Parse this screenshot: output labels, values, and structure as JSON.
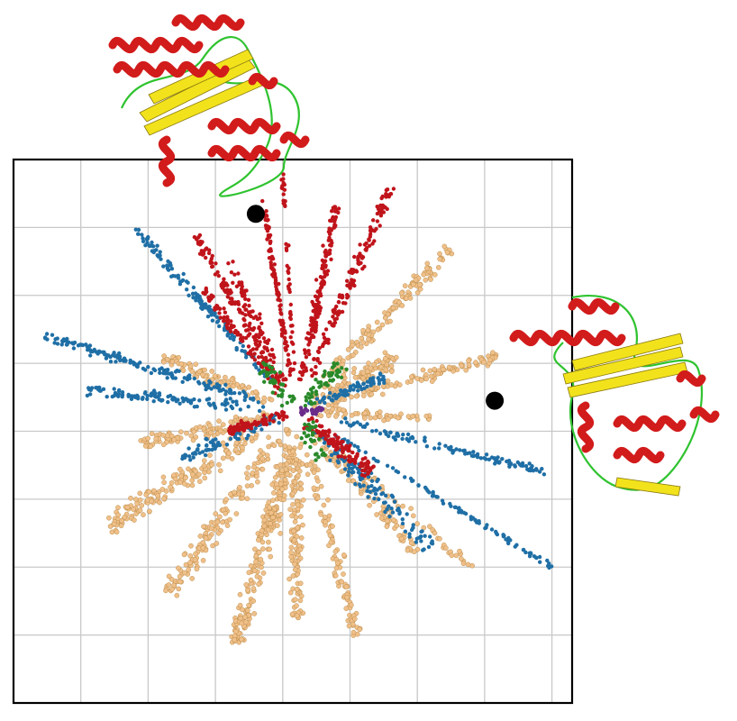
{
  "chart_data": {
    "type": "scatter",
    "title": "",
    "xlabel": "",
    "ylabel": "",
    "grid": true,
    "legend": "none",
    "xlim": [
      0,
      8.3
    ],
    "ylim": [
      0,
      8.0
    ],
    "description_of_layout": "",
    "series": [
      {
        "color": "#c0141b",
        "rays": [
          {
            "from": [
              4.2,
              4.3
            ],
            "to": [
              2.7,
              6.9
            ],
            "n": 120,
            "spread": 0.1
          },
          {
            "from": [
              4.2,
              4.3
            ],
            "to": [
              3.7,
              7.4
            ],
            "n": 110,
            "spread": 0.05
          },
          {
            "from": [
              4.2,
              4.3
            ],
            "to": [
              4.8,
              7.3
            ],
            "n": 160,
            "spread": 0.1
          },
          {
            "from": [
              4.2,
              4.3
            ],
            "to": [
              5.6,
              7.6
            ],
            "n": 150,
            "spread": 0.12
          },
          {
            "from": [
              4.2,
              4.3
            ],
            "to": [
              3.2,
              6.5
            ],
            "n": 80,
            "spread": 0.12
          },
          {
            "from": [
              4.2,
              4.3
            ],
            "to": [
              2.8,
              6.1
            ],
            "n": 80,
            "spread": 0.1
          },
          {
            "from": [
              4.2,
              4.3
            ],
            "to": [
              5.3,
              3.4
            ],
            "n": 120,
            "spread": 0.15
          },
          {
            "from": [
              4.2,
              4.3
            ],
            "to": [
              3.2,
              4.0
            ],
            "n": 90,
            "spread": 0.1
          },
          {
            "from": [
              4.2,
              4.3
            ],
            "to": [
              4.0,
              7.8
            ],
            "n": 45,
            "spread": 0.03
          }
        ]
      },
      {
        "color": "#1f6fa6",
        "rays": [
          {
            "from": [
              4.2,
              4.3
            ],
            "to": [
              0.45,
              5.4
            ],
            "n": 150,
            "spread": 0.1
          },
          {
            "from": [
              4.2,
              4.3
            ],
            "to": [
              1.8,
              7.0
            ],
            "n": 130,
            "spread": 0.1
          },
          {
            "from": [
              4.2,
              4.3
            ],
            "to": [
              1.1,
              4.6
            ],
            "n": 110,
            "spread": 0.12
          },
          {
            "from": [
              4.2,
              4.3
            ],
            "to": [
              7.9,
              3.4
            ],
            "n": 110,
            "spread": 0.08
          },
          {
            "from": [
              4.2,
              4.3
            ],
            "to": [
              8.0,
              2.0
            ],
            "n": 90,
            "spread": 0.06
          },
          {
            "from": [
              4.2,
              4.3
            ],
            "to": [
              6.2,
              2.3
            ],
            "n": 120,
            "spread": 0.2
          },
          {
            "from": [
              4.2,
              4.3
            ],
            "to": [
              5.5,
              4.8
            ],
            "n": 70,
            "spread": 0.12
          },
          {
            "from": [
              4.2,
              4.3
            ],
            "to": [
              2.5,
              3.6
            ],
            "n": 70,
            "spread": 0.15
          }
        ]
      },
      {
        "color": "#f0c08a",
        "rays": [
          {
            "from": [
              4.2,
              4.3
            ],
            "to": [
              6.5,
              6.7
            ],
            "n": 130,
            "spread": 0.15
          },
          {
            "from": [
              4.2,
              4.3
            ],
            "to": [
              7.2,
              5.1
            ],
            "n": 110,
            "spread": 0.12
          },
          {
            "from": [
              4.2,
              4.3
            ],
            "to": [
              1.4,
              2.6
            ],
            "n": 160,
            "spread": 0.22
          },
          {
            "from": [
              4.2,
              4.3
            ],
            "to": [
              2.3,
              1.6
            ],
            "n": 140,
            "spread": 0.2
          },
          {
            "from": [
              4.2,
              4.3
            ],
            "to": [
              3.3,
              0.85
            ],
            "n": 160,
            "spread": 0.2
          },
          {
            "from": [
              4.2,
              4.3
            ],
            "to": [
              4.2,
              1.2
            ],
            "n": 130,
            "spread": 0.15
          },
          {
            "from": [
              4.2,
              4.3
            ],
            "to": [
              5.1,
              1.0
            ],
            "n": 100,
            "spread": 0.15
          },
          {
            "from": [
              4.2,
              4.3
            ],
            "to": [
              6.0,
              2.2
            ],
            "n": 90,
            "spread": 0.15
          },
          {
            "from": [
              4.2,
              4.3
            ],
            "to": [
              6.8,
              2.0
            ],
            "n": 40,
            "spread": 0.1
          },
          {
            "from": [
              4.2,
              4.3
            ],
            "to": [
              1.9,
              3.8
            ],
            "n": 110,
            "spread": 0.18
          },
          {
            "from": [
              4.2,
              4.3
            ],
            "to": [
              2.2,
              5.1
            ],
            "n": 80,
            "spread": 0.15
          },
          {
            "from": [
              4.2,
              4.3
            ],
            "to": [
              5.7,
              5.1
            ],
            "n": 90,
            "spread": 0.18
          },
          {
            "from": [
              4.2,
              4.3
            ],
            "to": [
              6.2,
              4.2
            ],
            "n": 60,
            "spread": 0.12
          },
          {
            "from": [
              4.2,
              4.3
            ],
            "to": [
              3.8,
              2.5
            ],
            "n": 80,
            "spread": 0.2
          }
        ]
      },
      {
        "color": "#2a8a2a",
        "rays": [
          {
            "from": [
              4.2,
              4.3
            ],
            "to": [
              4.9,
              5.0
            ],
            "n": 50,
            "spread": 0.2
          },
          {
            "from": [
              4.2,
              4.3
            ],
            "to": [
              3.7,
              5.0
            ],
            "n": 40,
            "spread": 0.2
          },
          {
            "from": [
              4.2,
              4.3
            ],
            "to": [
              4.6,
              3.6
            ],
            "n": 30,
            "spread": 0.2
          }
        ]
      },
      {
        "color": "#6a2c8a",
        "rays": [
          {
            "from": [
              4.2,
              4.3
            ],
            "to": [
              4.6,
              4.3
            ],
            "n": 25,
            "spread": 0.1
          }
        ]
      }
    ],
    "markers": [
      {
        "x": 3.6,
        "y": 7.2,
        "color": "#000000"
      },
      {
        "x": 7.15,
        "y": 4.45,
        "color": "#000000"
      }
    ]
  },
  "structures": [
    {
      "icon": "protein-ribbon-icon",
      "colors": {
        "helix": "#d21b1b",
        "sheet": "#f2e21c",
        "loop": "#2fc32f"
      }
    },
    {
      "icon": "protein-ribbon-icon",
      "colors": {
        "helix": "#d21b1b",
        "sheet": "#f2e21c",
        "loop": "#2fc32f"
      }
    }
  ]
}
